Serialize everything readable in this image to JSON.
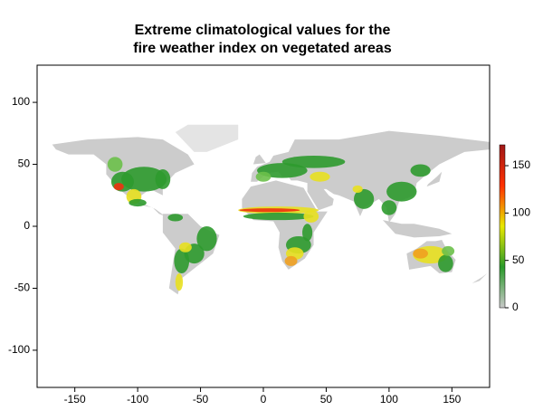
{
  "chart_data": {
    "type": "map",
    "title": [
      "Extreme climatological values for the",
      "fire weather index on vegetated areas"
    ],
    "xlim": [
      -180,
      180
    ],
    "xticks": [
      -150,
      -100,
      -50,
      0,
      50,
      100,
      150
    ],
    "ylim": [
      -130,
      130
    ],
    "yticks": [
      -100,
      -50,
      0,
      50,
      100
    ],
    "colorbar": {
      "lim": [
        0,
        172
      ],
      "ticks": [
        0,
        50,
        100,
        150
      ],
      "colors": [
        "#c8c8c8",
        "#2a9a2a",
        "#e8e800",
        "#ff3000",
        "#a01818"
      ]
    }
  }
}
